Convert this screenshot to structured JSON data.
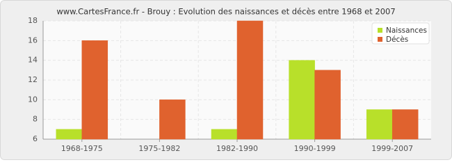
{
  "chart_data": {
    "type": "bar",
    "title": "www.CartesFrance.fr - Brouy : Evolution des naissances et décès entre 1968 et 2007",
    "categories": [
      "1968-1975",
      "1975-1982",
      "1982-1990",
      "1990-1999",
      "1999-2007"
    ],
    "series": [
      {
        "name": "Naissances",
        "color": "#b8e02a",
        "values": [
          7,
          6,
          7,
          14,
          9
        ]
      },
      {
        "name": "Décès",
        "color": "#e0622e",
        "values": [
          16,
          10,
          18,
          13,
          9
        ]
      }
    ],
    "ylim": [
      6,
      18
    ],
    "yticks": [
      6,
      8,
      10,
      12,
      14,
      16,
      18
    ],
    "grid": true,
    "legend": "top-right"
  }
}
